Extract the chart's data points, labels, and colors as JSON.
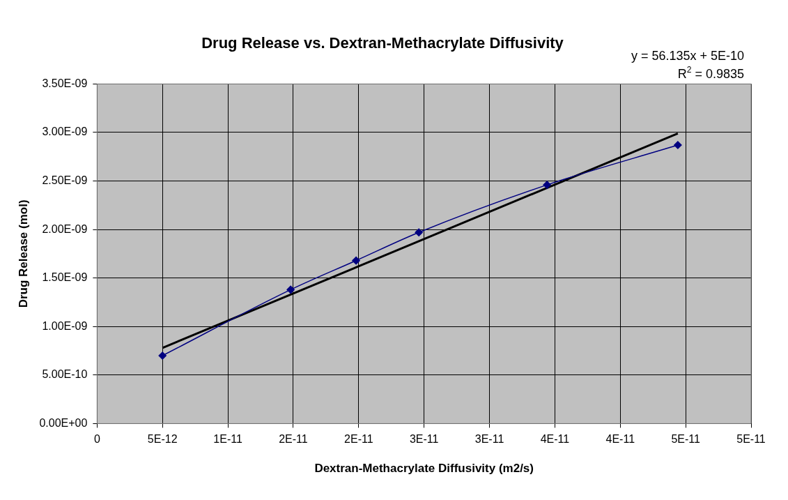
{
  "chart_data": {
    "type": "line",
    "title": "Drug Release vs. Dextran-Methacrylate Diffusivity",
    "xlabel": "Dextran-Methacrylate Diffusivity (m2/s)",
    "ylabel": "Drug Release (mol)",
    "x": [
      5e-12,
      1.48e-11,
      1.98e-11,
      2.46e-11,
      3.44e-11,
      4.44e-11
    ],
    "series": [
      {
        "color": "#000080",
        "values": [
          7e-10,
          1.38e-09,
          1.68e-09,
          1.97e-09,
          2.46e-09,
          2.87e-09
        ],
        "marker": "diamond"
      },
      {
        "color": "#000000",
        "x": [
          5e-12,
          4.44e-11
        ],
        "values": [
          7.8e-10,
          2.99e-09
        ],
        "marker": "none"
      }
    ],
    "xlim": [
      0,
      5e-11
    ],
    "xticks": [
      0,
      {
        "value": 5e-12,
        "label": "5E-12"
      },
      {
        "value": 1e-11,
        "label": "1E-11"
      },
      {
        "value": 1.5e-11,
        "label": "2E-11"
      },
      {
        "value": 2e-11,
        "label": "2E-11"
      },
      {
        "value": 2.5e-11,
        "label": "3E-11"
      },
      {
        "value": 3e-11,
        "label": "3E-11"
      },
      {
        "value": 3.5e-11,
        "label": "4E-11"
      },
      {
        "value": 4e-11,
        "label": "4E-11"
      },
      {
        "value": 4.5e-11,
        "label": "5E-11"
      },
      {
        "value": 5e-11,
        "label": "5E-11"
      }
    ],
    "ylim": [
      0,
      3.5e-09
    ],
    "yticks": [
      {
        "value": 0,
        "label": "0.00E+00"
      },
      {
        "value": 5e-10,
        "label": "5.00E-10"
      },
      {
        "value": 1e-09,
        "label": "1.00E-09"
      },
      {
        "value": 1.5e-09,
        "label": "1.50E-09"
      },
      {
        "value": 2e-09,
        "label": "2.00E-09"
      },
      {
        "value": 2.5e-09,
        "label": "2.50E-09"
      },
      {
        "value": 3e-09,
        "label": "3.00E-09"
      },
      {
        "value": 3.5e-09,
        "label": "3.50E-09"
      }
    ],
    "annotations": [
      "y = 56.135x + 5E-10",
      "R$^{2}$ = 0.9835"
    ],
    "grid": true,
    "legend": false
  }
}
